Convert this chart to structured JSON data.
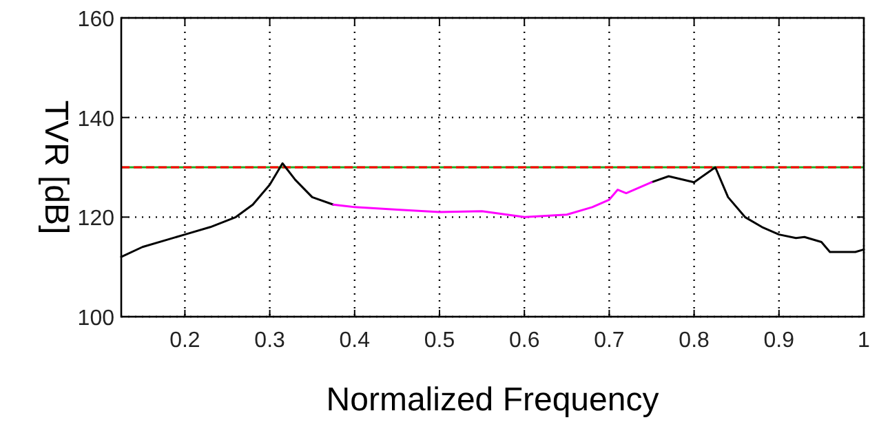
{
  "chart_data": {
    "type": "line",
    "xlabel": "Normalized Frequency",
    "ylabel": "TVR [dB]",
    "xlim": [
      0.125,
      1
    ],
    "ylim": [
      100,
      160
    ],
    "xticks": [
      {
        "value": 0.2,
        "label": "0.2"
      },
      {
        "value": 0.3,
        "label": "0.3"
      },
      {
        "value": 0.4,
        "label": "0.4"
      },
      {
        "value": 0.5,
        "label": "0.5"
      },
      {
        "value": 0.6,
        "label": "0.6"
      },
      {
        "value": 0.7,
        "label": "0.7"
      },
      {
        "value": 0.8,
        "label": "0.8"
      },
      {
        "value": 0.9,
        "label": "0.9"
      },
      1
    ],
    "yticks": [
      100,
      120,
      140,
      160
    ],
    "grid": true,
    "line_style": "solid",
    "marker": "none",
    "series": [
      {
        "color": "#000000",
        "x": [
          0.125,
          0.15,
          0.18,
          0.2,
          0.23,
          0.26,
          0.28,
          0.3,
          0.315,
          0.33,
          0.35,
          0.375,
          0.5,
          0.75,
          0.77,
          0.8,
          0.825,
          0.84,
          0.86,
          0.88,
          0.9,
          0.92,
          0.93,
          0.95,
          0.96,
          0.99,
          1.0
        ],
        "values": [
          112,
          114,
          115.5,
          116.5,
          118,
          120,
          122.5,
          126.5,
          130.8,
          127.5,
          124,
          122.5,
          null,
          127,
          128.2,
          127,
          130,
          124,
          120,
          118,
          116.5,
          115.8,
          116,
          115,
          113,
          113,
          113.5
        ]
      },
      {
        "color": "#ff00ff",
        "x": [
          0.375,
          0.4,
          0.45,
          0.5,
          0.55,
          0.6,
          0.65,
          0.68,
          0.7,
          0.71,
          0.72,
          0.75
        ],
        "values": [
          122.5,
          122,
          121.5,
          121,
          121.2,
          120,
          120.5,
          122,
          123.5,
          125.5,
          124.8,
          127
        ]
      }
    ],
    "ref_lines": [
      {
        "axis": "y",
        "value": 130,
        "color": "#22aa22",
        "line_style": "solid"
      },
      {
        "axis": "y",
        "value": 130,
        "color": "#ff0000",
        "line_style": "dashed"
      }
    ]
  }
}
